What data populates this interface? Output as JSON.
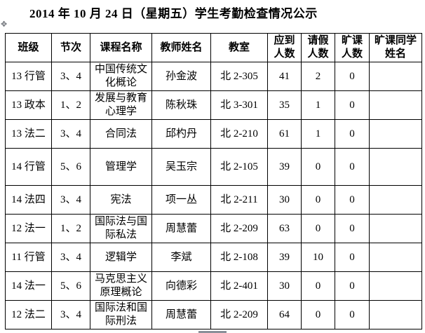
{
  "title": "2014 年 10 月 24 日（星期五）学生考勤检查情况公示",
  "icons": {
    "move_handle": "✥"
  },
  "colors": {
    "text": "#000000",
    "table_border": "#000000",
    "background": "#ffffff",
    "scrollbar_thumb": "#8a9099"
  },
  "table": {
    "headers": [
      "班级",
      "节次",
      "课程名称",
      "教师姓名",
      "教室",
      "应到\n人数",
      "请假\n人数",
      "旷课\n人数",
      "旷课同学\n姓名"
    ],
    "rows": [
      [
        "13 行管",
        "3、4",
        "中国传统文化概论",
        "孙金波",
        "北 2-305",
        "41",
        "2",
        "0",
        ""
      ],
      [
        "13 政本",
        "1、2",
        "发展与教育心理学",
        "陈秋珠",
        "北 3-301",
        "35",
        "1",
        "0",
        ""
      ],
      [
        "13 法二",
        "3、4",
        "合同法",
        "邱杓丹",
        "北 2-210",
        "61",
        "1",
        "0",
        ""
      ],
      [
        "14 行管",
        "5、6",
        "管理学",
        "吴玉宗",
        "北 2-105",
        "39",
        "0",
        "0",
        ""
      ],
      [
        "14 法四",
        "3、4",
        "宪法",
        "项一丛",
        "北 2-211",
        "30",
        "0",
        "0",
        ""
      ],
      [
        "12 法一",
        "1、2",
        "国际法与国际私法",
        "周慧蕾",
        "北 2-209",
        "63",
        "0",
        "0",
        ""
      ],
      [
        "11 行管",
        "3、4",
        "逻辑学",
        "李斌",
        "北 2-108",
        "39",
        "10",
        "0",
        ""
      ],
      [
        "14 法一",
        "5、6",
        "马克思主义原理概论",
        "向德彩",
        "北 2-401",
        "30",
        "0",
        "0",
        ""
      ],
      [
        "12 法二",
        "3、4",
        "国际法和国际刑法",
        "周慧蕾",
        "北 2-209",
        "64",
        "0",
        "0",
        ""
      ]
    ]
  }
}
